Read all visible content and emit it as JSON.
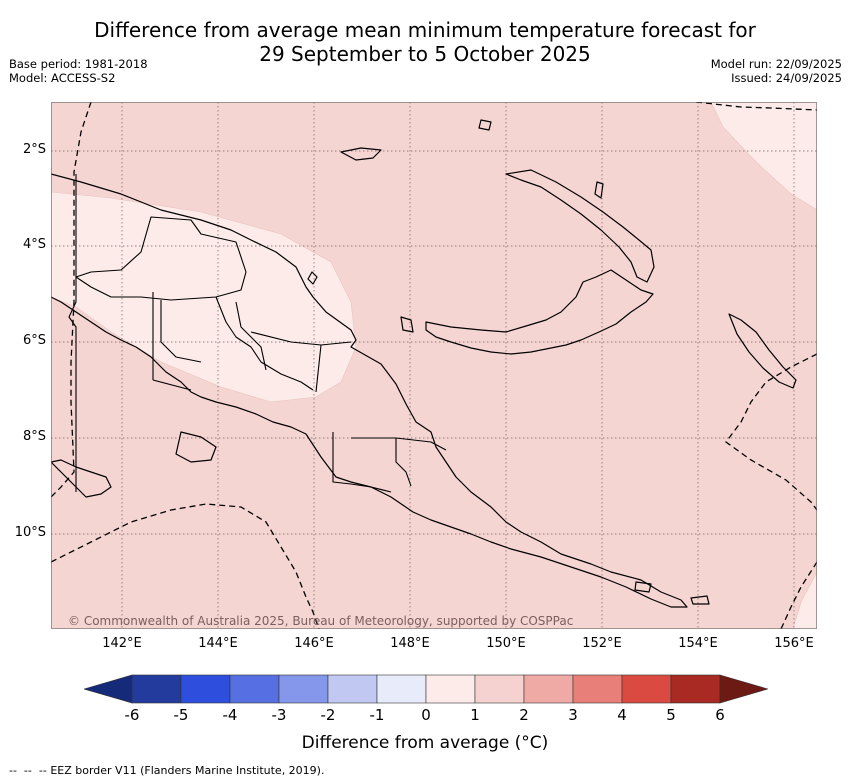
{
  "header": {
    "title_line1": "Difference from average mean minimum temperature forecast for",
    "title_line2": "29 September to 5 October 2025",
    "base_period": "Base period: 1981-2018",
    "model": "Model: ACCESS-S2",
    "model_run": "Model run: 22/09/2025",
    "issued": "Issued: 24/09/2025"
  },
  "map": {
    "lat_labels": [
      "2°S",
      "4°S",
      "6°S",
      "8°S",
      "10°S"
    ],
    "lon_labels": [
      "142°E",
      "144°E",
      "146°E",
      "148°E",
      "150°E",
      "152°E",
      "154°E",
      "156°E"
    ],
    "copyright": "© Commonwealth of Australia 2025, Bureau of Meteorology, supported by COSPPac",
    "region": "Papua New Guinea"
  },
  "colorbar": {
    "tick_labels": [
      "-6",
      "-5",
      "-4",
      "-3",
      "-2",
      "-1",
      "0",
      "1",
      "2",
      "3",
      "4",
      "5",
      "6"
    ],
    "colors": [
      "#233b9c",
      "#2e4fde",
      "#5670e3",
      "#8597ea",
      "#c1c8f2",
      "#e8ebf9",
      "#fcebe8",
      "#f5d2cf",
      "#f0aaa5",
      "#e87f78",
      "#db4a40",
      "#a82a22"
    ],
    "under_color": "#152a78",
    "over_color": "#6e1a14",
    "axis_title": "Difference from average (°C)"
  },
  "legend": {
    "eez_label": "EEZ border V11 (Flanders Marine Institute, 2019)."
  }
}
